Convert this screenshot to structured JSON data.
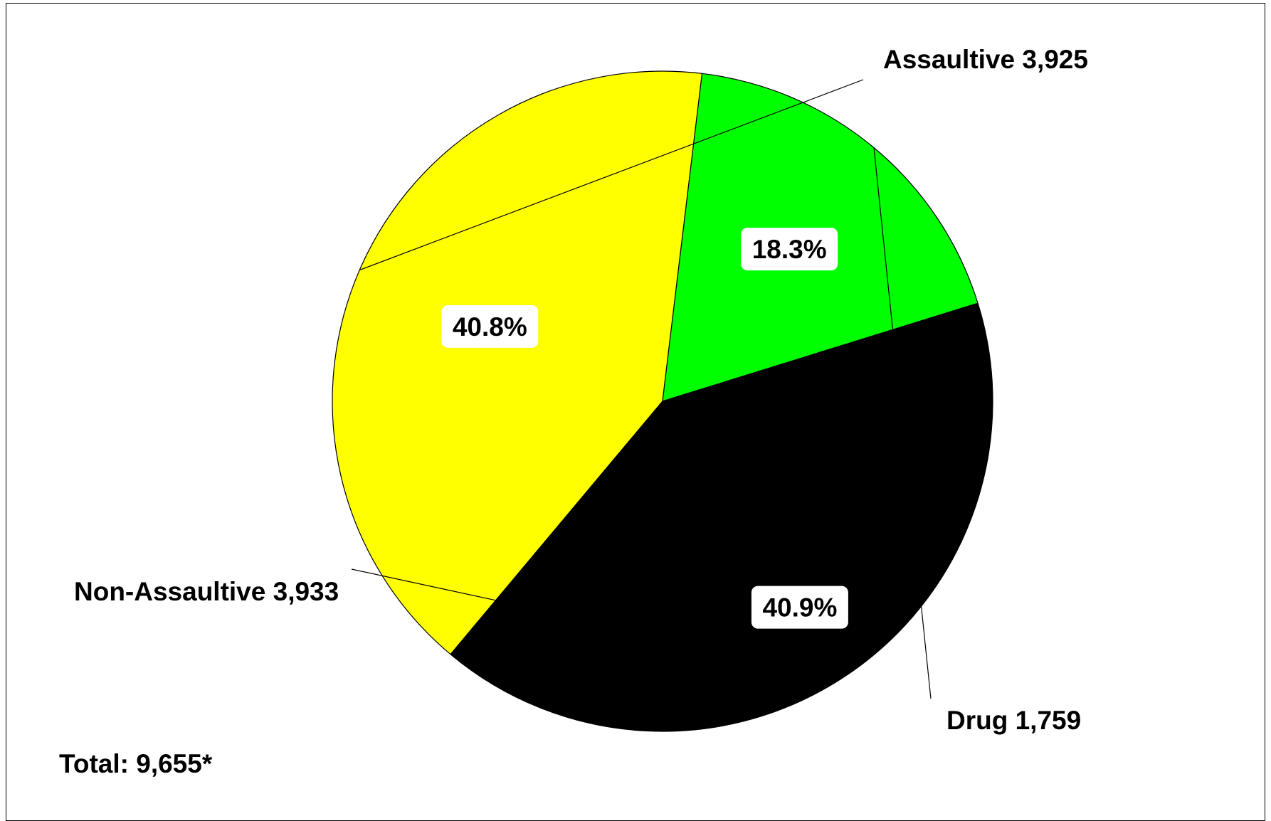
{
  "chart_data": {
    "type": "pie",
    "total_label": "Total: 9,655*",
    "slices": [
      {
        "name": "Assaultive",
        "label": "Assaultive 3,925",
        "value": 3925,
        "percent_label": "40.8%",
        "color": "#FFFF00"
      },
      {
        "name": "Drug",
        "label": "Drug 1,759",
        "value": 1759,
        "percent_label": "18.3%",
        "color": "#00FF00"
      },
      {
        "name": "Non-Assaultive",
        "label": "Non-Assaultive 3,933",
        "value": 3933,
        "percent_label": "40.9%",
        "color": "#000000"
      }
    ]
  }
}
